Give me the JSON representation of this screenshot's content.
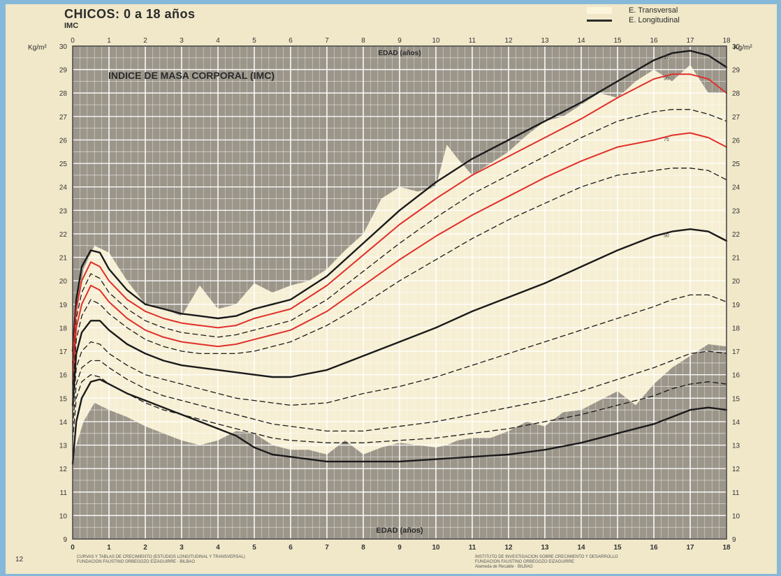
{
  "header": {
    "title": "CHICOS: 0 a 18 años",
    "subtitle": "IMC"
  },
  "legend": {
    "items": [
      {
        "label": "E. Transversal",
        "kind": "band"
      },
      {
        "label": "E. Longitudinal",
        "kind": "line"
      }
    ]
  },
  "footer": {
    "page_number": "12",
    "left_credits": "CURVAS Y TABLAS DE CRECIMIENTO (ESTUDIOS LONGITUDINAL Y TRANSVERSAL)\nFUNDACION FAUSTINO ORBEGOZO EIZAGUIRRE · BILBAO",
    "right_credits": "INSTITUTO DE INVESTIGACION SOBRE CRECIMIENTO Y DESARROLLO\nFUNDACION FAUSTINO ORBEGOZO EIZAGUIRRE\nAlameda de Recalde · BILBAO"
  },
  "chart_data": {
    "type": "line",
    "title": "INDICE DE MASA CORPORAL (IMC)",
    "xlabel": "EDAD (años)",
    "ylabel_left": "Kg/m²",
    "ylabel_right": "Kg/m²",
    "xlim": [
      0,
      18
    ],
    "ylim": [
      9,
      30
    ],
    "x_ticks": [
      0,
      1,
      2,
      3,
      4,
      5,
      6,
      7,
      8,
      9,
      10,
      11,
      12,
      13,
      14,
      15,
      16,
      17,
      18
    ],
    "y_ticks": [
      9,
      10,
      11,
      12,
      13,
      14,
      15,
      16,
      17,
      18,
      19,
      20,
      21,
      22,
      23,
      24,
      25,
      26,
      27,
      28,
      29,
      30
    ],
    "grid": true,
    "colors": {
      "plot_background": "#9c968a",
      "band": "#f6efd4",
      "grid": "#ffffff",
      "main_curve": "#1a1a1a",
      "highlight_curve": "#e0302a",
      "dashed_curve": "#1a1a1a"
    },
    "band": {
      "name": "E. Transversal",
      "x": [
        0,
        0.3,
        0.6,
        1,
        1.5,
        2,
        2.5,
        3,
        3.5,
        4,
        4.5,
        5,
        5.5,
        6,
        6.5,
        7,
        7.5,
        8,
        8.5,
        9,
        9.5,
        10,
        10.3,
        10.6,
        11,
        11.5,
        12,
        12.5,
        13,
        13.5,
        14,
        14.5,
        15,
        15.5,
        16,
        16.5,
        17,
        17.5,
        18
      ],
      "upper": [
        17.5,
        20.5,
        21.5,
        21.2,
        20.0,
        19.0,
        18.8,
        18.5,
        19.8,
        18.8,
        19.0,
        19.9,
        19.5,
        19.8,
        20.0,
        20.5,
        21.3,
        22.0,
        23.5,
        24.0,
        23.8,
        24.0,
        25.8,
        25.2,
        24.5,
        25.0,
        25.5,
        26.2,
        26.8,
        27.0,
        27.5,
        28.0,
        27.8,
        28.5,
        29.0,
        28.5,
        29.2,
        28.0,
        28.0
      ],
      "lower": [
        12.5,
        14.0,
        14.8,
        14.5,
        14.2,
        13.8,
        13.5,
        13.2,
        13.0,
        13.2,
        13.6,
        13.5,
        13.0,
        12.8,
        12.8,
        12.6,
        13.2,
        12.6,
        12.9,
        13.1,
        13.0,
        12.9,
        13.0,
        13.2,
        13.3,
        13.3,
        13.6,
        14.0,
        13.8,
        14.4,
        14.5,
        14.9,
        15.3,
        14.7,
        15.6,
        16.3,
        16.8,
        17.3,
        17.2
      ]
    },
    "x": [
      0,
      0.1,
      0.25,
      0.5,
      0.75,
      1,
      1.5,
      2,
      2.5,
      3,
      3.5,
      4,
      4.5,
      5,
      5.5,
      6,
      7,
      8,
      9,
      10,
      11,
      12,
      13,
      14,
      15,
      16,
      16.5,
      17,
      17.5,
      18
    ],
    "series": [
      {
        "label": "97",
        "style": "solid",
        "weight": "heavy",
        "color": "main",
        "values": [
          17.0,
          19.2,
          20.6,
          21.3,
          21.2,
          20.5,
          19.6,
          19.0,
          18.8,
          18.6,
          18.5,
          18.4,
          18.5,
          18.8,
          19.0,
          19.2,
          20.2,
          21.6,
          23.0,
          24.2,
          25.2,
          26.0,
          26.8,
          27.6,
          28.5,
          29.4,
          29.7,
          29.8,
          29.6,
          29.1
        ]
      },
      {
        "label": "90",
        "style": "solid",
        "weight": "normal",
        "color": "highlight",
        "values": [
          16.5,
          18.8,
          20.0,
          20.8,
          20.6,
          20.0,
          19.2,
          18.7,
          18.4,
          18.2,
          18.1,
          18.0,
          18.1,
          18.4,
          18.6,
          18.8,
          19.8,
          21.1,
          22.4,
          23.5,
          24.5,
          25.3,
          26.1,
          26.9,
          27.8,
          28.6,
          28.8,
          28.8,
          28.6,
          28.0
        ]
      },
      {
        "label": "",
        "style": "dashed",
        "weight": "normal",
        "color": "dashed",
        "values": [
          16.0,
          18.4,
          19.5,
          20.3,
          20.1,
          19.5,
          18.8,
          18.3,
          18.0,
          17.8,
          17.7,
          17.6,
          17.7,
          17.9,
          18.1,
          18.3,
          19.2,
          20.4,
          21.6,
          22.7,
          23.7,
          24.5,
          25.3,
          26.1,
          26.8,
          27.2,
          27.3,
          27.3,
          27.1,
          26.8
        ]
      },
      {
        "label": "75",
        "style": "solid",
        "weight": "normal",
        "color": "highlight",
        "values": [
          15.6,
          18.0,
          19.0,
          19.8,
          19.6,
          19.1,
          18.4,
          17.9,
          17.6,
          17.4,
          17.3,
          17.2,
          17.3,
          17.5,
          17.7,
          17.9,
          18.7,
          19.8,
          20.9,
          21.9,
          22.8,
          23.6,
          24.4,
          25.1,
          25.7,
          26.0,
          26.2,
          26.3,
          26.1,
          25.7
        ]
      },
      {
        "label": "",
        "style": "dashed",
        "weight": "normal",
        "color": "dashed",
        "values": [
          15.2,
          17.5,
          18.5,
          19.2,
          19.0,
          18.6,
          18.0,
          17.5,
          17.2,
          17.0,
          16.9,
          16.9,
          16.9,
          17.0,
          17.2,
          17.4,
          18.1,
          19.0,
          20.0,
          20.9,
          21.8,
          22.6,
          23.3,
          24.0,
          24.5,
          24.7,
          24.8,
          24.8,
          24.7,
          24.3
        ]
      },
      {
        "label": "50",
        "style": "solid",
        "weight": "heavy",
        "color": "main",
        "values": [
          14.7,
          16.9,
          17.8,
          18.3,
          18.3,
          17.9,
          17.3,
          16.9,
          16.6,
          16.4,
          16.3,
          16.2,
          16.1,
          16.0,
          15.9,
          15.9,
          16.2,
          16.8,
          17.4,
          18.0,
          18.7,
          19.3,
          19.9,
          20.6,
          21.3,
          21.9,
          22.1,
          22.2,
          22.1,
          21.7
        ]
      },
      {
        "label": "",
        "style": "dashed",
        "weight": "normal",
        "color": "dashed",
        "values": [
          14.3,
          16.3,
          17.0,
          17.4,
          17.3,
          16.9,
          16.4,
          16.0,
          15.8,
          15.6,
          15.4,
          15.2,
          15.0,
          14.9,
          14.8,
          14.7,
          14.8,
          15.2,
          15.5,
          15.9,
          16.4,
          16.9,
          17.4,
          17.9,
          18.4,
          18.9,
          19.2,
          19.4,
          19.4,
          19.1
        ]
      },
      {
        "label": "",
        "style": "dashed",
        "weight": "normal",
        "color": "dashed",
        "values": [
          13.8,
          15.6,
          16.3,
          16.6,
          16.6,
          16.3,
          15.8,
          15.4,
          15.1,
          14.9,
          14.7,
          14.5,
          14.3,
          14.1,
          13.9,
          13.8,
          13.6,
          13.6,
          13.8,
          14.0,
          14.3,
          14.6,
          14.9,
          15.3,
          15.8,
          16.3,
          16.6,
          16.9,
          17.0,
          16.9
        ]
      },
      {
        "label": "",
        "style": "dashed",
        "weight": "normal",
        "color": "dashed",
        "values": [
          13.2,
          15.0,
          15.7,
          16.0,
          15.9,
          15.6,
          15.2,
          14.8,
          14.5,
          14.3,
          14.1,
          13.9,
          13.7,
          13.5,
          13.3,
          13.2,
          13.1,
          13.1,
          13.2,
          13.3,
          13.5,
          13.7,
          14.0,
          14.3,
          14.7,
          15.1,
          15.4,
          15.6,
          15.7,
          15.6
        ]
      },
      {
        "label": "3",
        "style": "solid",
        "weight": "heavy",
        "color": "main",
        "values": [
          12.2,
          14.0,
          15.0,
          15.7,
          15.8,
          15.6,
          15.2,
          14.9,
          14.6,
          14.3,
          14.0,
          13.7,
          13.4,
          12.9,
          12.6,
          12.5,
          12.3,
          12.3,
          12.3,
          12.4,
          12.5,
          12.6,
          12.8,
          13.1,
          13.5,
          13.9,
          14.2,
          14.5,
          14.6,
          14.5
        ]
      }
    ]
  }
}
